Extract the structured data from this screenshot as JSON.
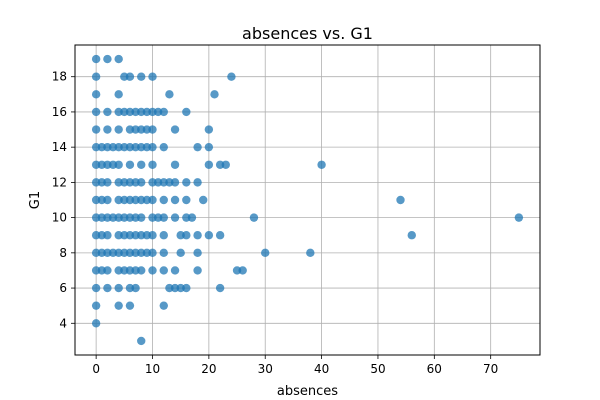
{
  "chart_data": {
    "type": "scatter",
    "title": "absences vs. G1",
    "xlabel": "absences",
    "ylabel": "G1",
    "xlim": [
      -3.75,
      78.75
    ],
    "ylim": [
      2.2,
      19.8
    ],
    "xticks": [
      0,
      10,
      20,
      30,
      40,
      50,
      60,
      70
    ],
    "yticks": [
      4,
      6,
      8,
      10,
      12,
      14,
      16,
      18
    ],
    "grid": true,
    "legend": "none",
    "marker_color": "#1f77b4",
    "points": [
      [
        0,
        19
      ],
      [
        2,
        19
      ],
      [
        4,
        19
      ],
      [
        0,
        18
      ],
      [
        5,
        18
      ],
      [
        6,
        18
      ],
      [
        8,
        18
      ],
      [
        10,
        18
      ],
      [
        24,
        18
      ],
      [
        0,
        17
      ],
      [
        4,
        17
      ],
      [
        13,
        17
      ],
      [
        21,
        17
      ],
      [
        0,
        16
      ],
      [
        2,
        16
      ],
      [
        4,
        16
      ],
      [
        5,
        16
      ],
      [
        6,
        16
      ],
      [
        7,
        16
      ],
      [
        8,
        16
      ],
      [
        9,
        16
      ],
      [
        10,
        16
      ],
      [
        11,
        16
      ],
      [
        12,
        16
      ],
      [
        16,
        16
      ],
      [
        0,
        15
      ],
      [
        2,
        15
      ],
      [
        4,
        15
      ],
      [
        6,
        15
      ],
      [
        7,
        15
      ],
      [
        8,
        15
      ],
      [
        9,
        15
      ],
      [
        10,
        15
      ],
      [
        14,
        15
      ],
      [
        20,
        15
      ],
      [
        0,
        14
      ],
      [
        1,
        14
      ],
      [
        2,
        14
      ],
      [
        3,
        14
      ],
      [
        4,
        14
      ],
      [
        5,
        14
      ],
      [
        6,
        14
      ],
      [
        7,
        14
      ],
      [
        8,
        14
      ],
      [
        9,
        14
      ],
      [
        10,
        14
      ],
      [
        12,
        14
      ],
      [
        18,
        14
      ],
      [
        20,
        14
      ],
      [
        0,
        13
      ],
      [
        1,
        13
      ],
      [
        2,
        13
      ],
      [
        3,
        13
      ],
      [
        4,
        13
      ],
      [
        6,
        13
      ],
      [
        8,
        13
      ],
      [
        10,
        13
      ],
      [
        14,
        13
      ],
      [
        20,
        13
      ],
      [
        22,
        13
      ],
      [
        23,
        13
      ],
      [
        40,
        13
      ],
      [
        0,
        12
      ],
      [
        1,
        12
      ],
      [
        2,
        12
      ],
      [
        4,
        12
      ],
      [
        5,
        12
      ],
      [
        6,
        12
      ],
      [
        7,
        12
      ],
      [
        8,
        12
      ],
      [
        10,
        12
      ],
      [
        11,
        12
      ],
      [
        12,
        12
      ],
      [
        13,
        12
      ],
      [
        14,
        12
      ],
      [
        16,
        12
      ],
      [
        18,
        12
      ],
      [
        0,
        11
      ],
      [
        1,
        11
      ],
      [
        2,
        11
      ],
      [
        4,
        11
      ],
      [
        5,
        11
      ],
      [
        6,
        11
      ],
      [
        7,
        11
      ],
      [
        8,
        11
      ],
      [
        9,
        11
      ],
      [
        10,
        11
      ],
      [
        12,
        11
      ],
      [
        14,
        11
      ],
      [
        16,
        11
      ],
      [
        19,
        11
      ],
      [
        54,
        11
      ],
      [
        0,
        10
      ],
      [
        1,
        10
      ],
      [
        2,
        10
      ],
      [
        3,
        10
      ],
      [
        4,
        10
      ],
      [
        5,
        10
      ],
      [
        6,
        10
      ],
      [
        7,
        10
      ],
      [
        8,
        10
      ],
      [
        10,
        10
      ],
      [
        11,
        10
      ],
      [
        12,
        10
      ],
      [
        14,
        10
      ],
      [
        16,
        10
      ],
      [
        17,
        10
      ],
      [
        28,
        10
      ],
      [
        75,
        10
      ],
      [
        0,
        9
      ],
      [
        1,
        9
      ],
      [
        2,
        9
      ],
      [
        4,
        9
      ],
      [
        5,
        9
      ],
      [
        6,
        9
      ],
      [
        7,
        9
      ],
      [
        8,
        9
      ],
      [
        9,
        9
      ],
      [
        10,
        9
      ],
      [
        12,
        9
      ],
      [
        15,
        9
      ],
      [
        16,
        9
      ],
      [
        18,
        9
      ],
      [
        20,
        9
      ],
      [
        22,
        9
      ],
      [
        56,
        9
      ],
      [
        0,
        8
      ],
      [
        1,
        8
      ],
      [
        2,
        8
      ],
      [
        3,
        8
      ],
      [
        4,
        8
      ],
      [
        5,
        8
      ],
      [
        6,
        8
      ],
      [
        7,
        8
      ],
      [
        8,
        8
      ],
      [
        9,
        8
      ],
      [
        10,
        8
      ],
      [
        12,
        8
      ],
      [
        15,
        8
      ],
      [
        18,
        8
      ],
      [
        30,
        8
      ],
      [
        38,
        8
      ],
      [
        0,
        7
      ],
      [
        1,
        7
      ],
      [
        2,
        7
      ],
      [
        4,
        7
      ],
      [
        5,
        7
      ],
      [
        6,
        7
      ],
      [
        7,
        7
      ],
      [
        8,
        7
      ],
      [
        10,
        7
      ],
      [
        12,
        7
      ],
      [
        14,
        7
      ],
      [
        18,
        7
      ],
      [
        25,
        7
      ],
      [
        26,
        7
      ],
      [
        0,
        6
      ],
      [
        2,
        6
      ],
      [
        4,
        6
      ],
      [
        6,
        6
      ],
      [
        7,
        6
      ],
      [
        13,
        6
      ],
      [
        14,
        6
      ],
      [
        15,
        6
      ],
      [
        16,
        6
      ],
      [
        22,
        6
      ],
      [
        0,
        5
      ],
      [
        4,
        5
      ],
      [
        6,
        5
      ],
      [
        12,
        5
      ],
      [
        0,
        4
      ],
      [
        8,
        3
      ]
    ]
  }
}
